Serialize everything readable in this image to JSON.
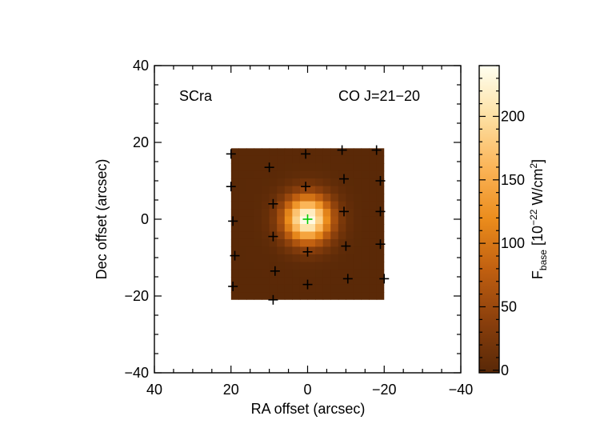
{
  "chart_data": {
    "type": "heatmap",
    "title": "",
    "annotations": {
      "source": "SCra",
      "line": "CO J=21−20"
    },
    "xlabel": "RA offset (arcsec)",
    "ylabel": "Dec offset (arcsec)",
    "xlim": [
      40,
      -40
    ],
    "ylim": [
      -40,
      40
    ],
    "xticks": [
      40,
      20,
      0,
      -20,
      -40
    ],
    "xtick_labels": [
      "40",
      "20",
      "0",
      "−20",
      "−40"
    ],
    "yticks": [
      40,
      20,
      0,
      -20,
      -40
    ],
    "ytick_labels": [
      "40",
      "20",
      "0",
      "−20",
      "−40"
    ],
    "map": {
      "ra_range": [
        20,
        -20
      ],
      "dec_range": [
        -21,
        18.5
      ],
      "peak_ra": 0,
      "peak_dec": 0,
      "peak_value": 240,
      "base_value": 0,
      "fwhm_arcsec": 10
    },
    "spaxels": [
      {
        "ra": 20,
        "dec": 17
      },
      {
        "ra": 10,
        "dec": 13.5
      },
      {
        "ra": 0.5,
        "dec": 17
      },
      {
        "ra": -9,
        "dec": 18
      },
      {
        "ra": -18,
        "dec": 18
      },
      {
        "ra": 20,
        "dec": 8.5
      },
      {
        "ra": 0.5,
        "dec": 8.5
      },
      {
        "ra": -9.5,
        "dec": 10.5
      },
      {
        "ra": -19,
        "dec": 10
      },
      {
        "ra": 19.5,
        "dec": -0.5
      },
      {
        "ra": 9,
        "dec": 4
      },
      {
        "ra": -9.5,
        "dec": 2
      },
      {
        "ra": -19,
        "dec": 2
      },
      {
        "ra": 9,
        "dec": -4.5
      },
      {
        "ra": 0,
        "dec": -8.5
      },
      {
        "ra": -10,
        "dec": -7
      },
      {
        "ra": -19,
        "dec": -6.5
      },
      {
        "ra": 19,
        "dec": -9.5
      },
      {
        "ra": 8.5,
        "dec": -13.5
      },
      {
        "ra": 0,
        "dec": -17
      },
      {
        "ra": -10.5,
        "dec": -15.5
      },
      {
        "ra": -20,
        "dec": -15.5
      },
      {
        "ra": 19.5,
        "dec": -17.5
      },
      {
        "ra": 9,
        "dec": -21
      }
    ],
    "central_spaxel": {
      "ra": 0,
      "dec": 0,
      "color": "#00cc00"
    },
    "colorbar": {
      "label_main": "F",
      "label_sub": "base",
      "label_units": " [10",
      "label_exp": "−22",
      "label_units2": " W/cm",
      "label_exp2": "2",
      "label_end": "]",
      "range": [
        -2,
        240
      ],
      "ticks": [
        0,
        50,
        100,
        150,
        200
      ],
      "tick_labels": [
        "0",
        "50",
        "100",
        "150",
        "200"
      ],
      "colormap": [
        "#582807",
        "#8a3f0c",
        "#c05f10",
        "#eb8c1c",
        "#fbb457",
        "#fde0a3",
        "#fffff0"
      ]
    }
  }
}
